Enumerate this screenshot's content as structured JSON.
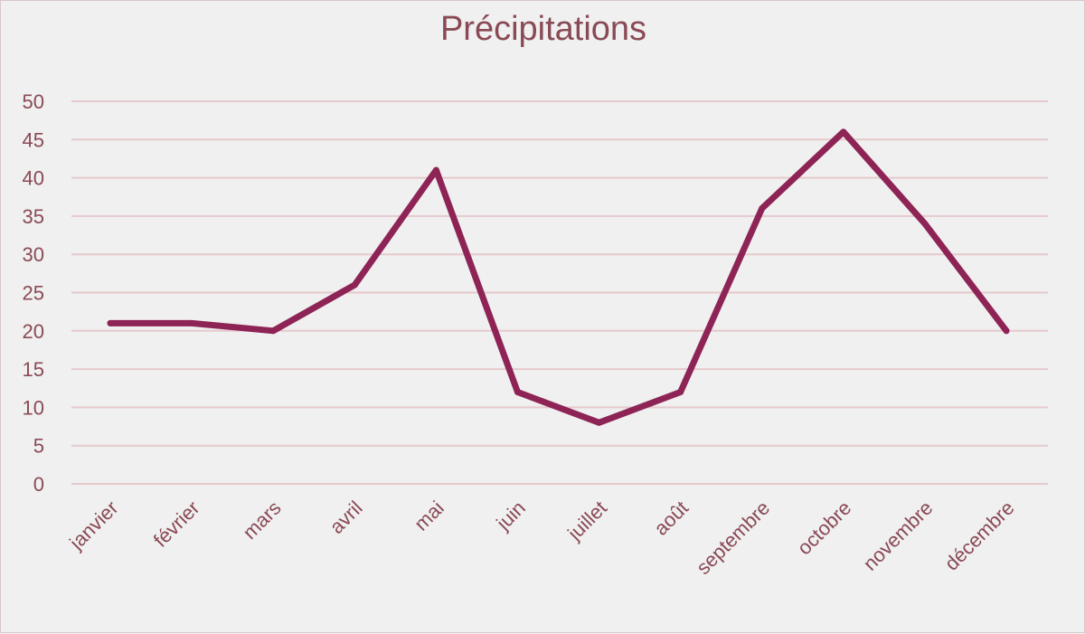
{
  "chart_data": {
    "type": "line",
    "title": "Précipitations",
    "categories": [
      "janvier",
      "février",
      "mars",
      "avril",
      "mai",
      "juin",
      "juillet",
      "août",
      "septembre",
      "octobre",
      "novembre",
      "décembre"
    ],
    "series": [
      {
        "values": [
          21,
          21,
          20,
          26,
          41,
          12,
          8,
          12,
          36,
          46,
          34,
          20
        ]
      }
    ],
    "ylim": [
      0,
      50
    ],
    "yticks": [
      0,
      5,
      10,
      15,
      20,
      25,
      30,
      35,
      40,
      45,
      50
    ],
    "xlabel": "",
    "ylabel": "",
    "grid": true,
    "legend": "none",
    "colors": {
      "line": "#8e2455",
      "grid": "#e6c9cc",
      "text": "#8a4a55",
      "background": "#f0f0f0"
    }
  }
}
